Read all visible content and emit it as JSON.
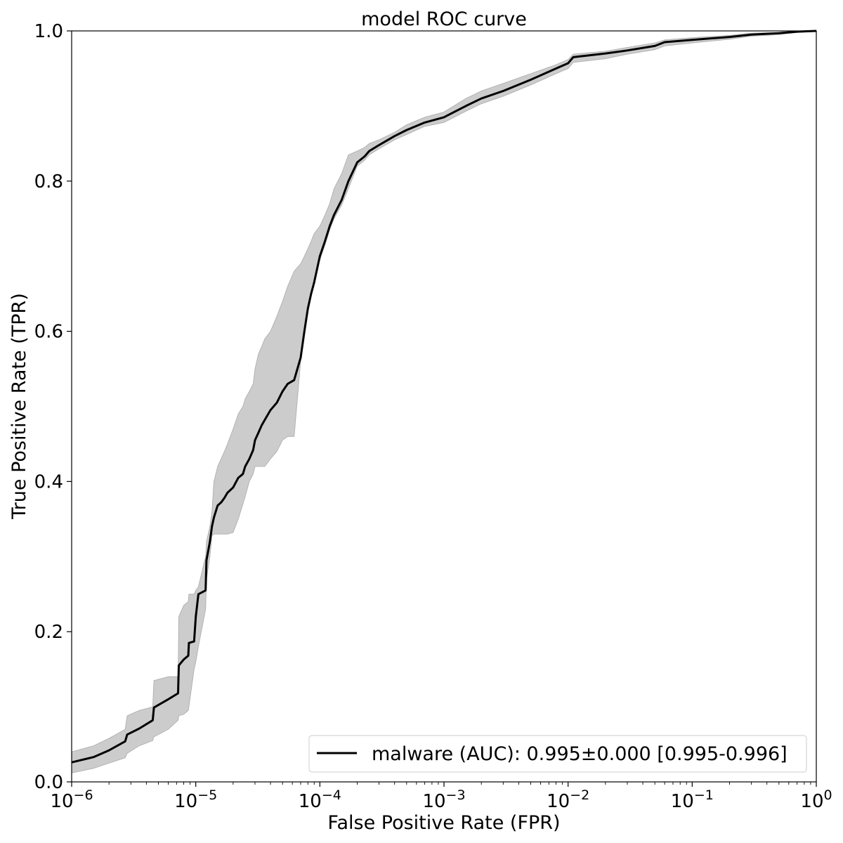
{
  "chart_data": {
    "type": "line",
    "title": "model ROC curve",
    "xlabel": "False Positive Rate (FPR)",
    "ylabel": "True Positive Rate (TPR)",
    "x_scale": "log",
    "xlim": [
      1e-06,
      1
    ],
    "ylim": [
      0.0,
      1.0
    ],
    "grid": false,
    "legend_position": "lower-right",
    "x_ticks": [
      {
        "value": 1e-06,
        "base": "10",
        "exp": "−6"
      },
      {
        "value": 1e-05,
        "base": "10",
        "exp": "−5"
      },
      {
        "value": 0.0001,
        "base": "10",
        "exp": "−4"
      },
      {
        "value": 0.001,
        "base": "10",
        "exp": "−3"
      },
      {
        "value": 0.01,
        "base": "10",
        "exp": "−2"
      },
      {
        "value": 0.1,
        "base": "10",
        "exp": "−1"
      },
      {
        "value": 1,
        "base": "10",
        "exp": "0"
      }
    ],
    "y_ticks": [
      {
        "value": 0.0,
        "label": "0.0"
      },
      {
        "value": 0.2,
        "label": "0.2"
      },
      {
        "value": 0.4,
        "label": "0.4"
      },
      {
        "value": 0.6,
        "label": "0.6"
      },
      {
        "value": 0.8,
        "label": "0.8"
      },
      {
        "value": 1.0,
        "label": "1.0"
      }
    ],
    "series": [
      {
        "name": "malware (AUC): 0.995±0.000 [0.995-0.996]",
        "color": "#000000",
        "band_color": "#cccccc",
        "x": [
          1e-06,
          1.5e-06,
          2e-06,
          2.7e-06,
          2.8e-06,
          3.5e-06,
          4.5e-06,
          4.6e-06,
          6e-06,
          7.2e-06,
          7.3e-06,
          8e-06,
          8.7e-06,
          8.8e-06,
          9.7e-06,
          1e-05,
          1.05e-05,
          1.2e-05,
          1.22e-05,
          1.3e-05,
          1.35e-05,
          1.4e-05,
          1.5e-05,
          1.6e-05,
          1.7e-05,
          1.8e-05,
          2e-05,
          2.2e-05,
          2.4e-05,
          2.5e-05,
          2.7e-05,
          2.9e-05,
          3e-05,
          3.2e-05,
          3.4e-05,
          3.6e-05,
          4e-05,
          4.5e-05,
          5e-05,
          5.5e-05,
          6.2e-05,
          7e-05,
          7.5e-05,
          8e-05,
          8.5e-05,
          9e-05,
          0.0001,
          0.00011,
          0.00012,
          0.00013,
          0.00015,
          0.00017,
          0.0002,
          0.00023,
          0.00025,
          0.0003,
          0.0004,
          0.0005,
          0.0007,
          0.001,
          0.0015,
          0.002,
          0.003,
          0.005,
          0.008,
          0.01,
          0.011,
          0.02,
          0.03,
          0.05,
          0.06,
          0.1,
          0.2,
          0.3,
          0.5,
          0.7,
          1.0
        ],
        "y": [
          0.026,
          0.033,
          0.042,
          0.054,
          0.063,
          0.071,
          0.082,
          0.099,
          0.11,
          0.118,
          0.155,
          0.163,
          0.168,
          0.185,
          0.187,
          0.22,
          0.25,
          0.255,
          0.295,
          0.32,
          0.34,
          0.352,
          0.368,
          0.372,
          0.378,
          0.385,
          0.392,
          0.405,
          0.41,
          0.42,
          0.43,
          0.442,
          0.455,
          0.465,
          0.475,
          0.482,
          0.495,
          0.505,
          0.52,
          0.53,
          0.535,
          0.565,
          0.6,
          0.63,
          0.65,
          0.665,
          0.7,
          0.72,
          0.74,
          0.755,
          0.775,
          0.8,
          0.825,
          0.833,
          0.84,
          0.848,
          0.86,
          0.868,
          0.878,
          0.885,
          0.9,
          0.91,
          0.92,
          0.935,
          0.95,
          0.957,
          0.965,
          0.97,
          0.974,
          0.98,
          0.985,
          0.988,
          0.992,
          0.995,
          0.997,
          0.999,
          1.0
        ],
        "lower": [
          0.012,
          0.018,
          0.025,
          0.032,
          0.038,
          0.048,
          0.055,
          0.06,
          0.07,
          0.082,
          0.088,
          0.09,
          0.095,
          0.1,
          0.15,
          0.16,
          0.18,
          0.23,
          0.27,
          0.3,
          0.328,
          0.33,
          0.33,
          0.33,
          0.33,
          0.33,
          0.332,
          0.35,
          0.37,
          0.38,
          0.4,
          0.41,
          0.42,
          0.42,
          0.42,
          0.42,
          0.43,
          0.44,
          0.455,
          0.46,
          0.46,
          0.56,
          0.6,
          0.63,
          0.65,
          0.665,
          0.695,
          0.715,
          0.735,
          0.75,
          0.768,
          0.79,
          0.82,
          0.828,
          0.835,
          0.843,
          0.855,
          0.862,
          0.873,
          0.878,
          0.893,
          0.903,
          0.913,
          0.928,
          0.943,
          0.95,
          0.958,
          0.963,
          0.969,
          0.975,
          0.98,
          0.984,
          0.989,
          0.993,
          0.995,
          0.998,
          1.0
        ],
        "upper": [
          0.04,
          0.048,
          0.058,
          0.07,
          0.088,
          0.095,
          0.1,
          0.135,
          0.14,
          0.14,
          0.22,
          0.235,
          0.24,
          0.25,
          0.25,
          0.255,
          0.26,
          0.3,
          0.32,
          0.34,
          0.36,
          0.4,
          0.42,
          0.43,
          0.44,
          0.45,
          0.47,
          0.49,
          0.5,
          0.51,
          0.52,
          0.53,
          0.55,
          0.57,
          0.58,
          0.59,
          0.6,
          0.62,
          0.64,
          0.66,
          0.68,
          0.69,
          0.7,
          0.71,
          0.72,
          0.73,
          0.74,
          0.755,
          0.77,
          0.79,
          0.81,
          0.835,
          0.84,
          0.845,
          0.85,
          0.855,
          0.865,
          0.875,
          0.885,
          0.892,
          0.91,
          0.92,
          0.93,
          0.943,
          0.955,
          0.962,
          0.969,
          0.973,
          0.978,
          0.984,
          0.988,
          0.991,
          0.994,
          0.997,
          0.998,
          1.0,
          1.0
        ]
      }
    ]
  }
}
